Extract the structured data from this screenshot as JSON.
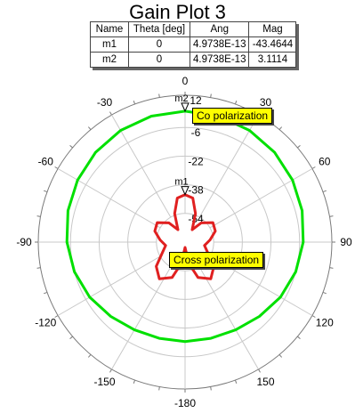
{
  "chart_data": {
    "type": "polar",
    "title": "Gain Plot 3",
    "angle_ticks": [
      "0",
      "30",
      "60",
      "90",
      "120",
      "150",
      "-180",
      "-150",
      "-120",
      "-90",
      "-60",
      "-30"
    ],
    "radial_ticks": [
      "12",
      "-6",
      "-22",
      "-38",
      "-54"
    ],
    "radial_range": [
      -70,
      12
    ],
    "series": [
      {
        "name": "Co polarization",
        "color": "#00e000",
        "points": [
          [
            0,
            3.1
          ],
          [
            15,
            2.8
          ],
          [
            30,
            2.0
          ],
          [
            45,
            0.8
          ],
          [
            60,
            -0.7
          ],
          [
            75,
            -2.3
          ],
          [
            90,
            -4.0
          ],
          [
            105,
            -6.0
          ],
          [
            120,
            -8.5
          ],
          [
            135,
            -11.3
          ],
          [
            150,
            -13.4
          ],
          [
            165,
            -14.4
          ],
          [
            180,
            -14.5
          ],
          [
            195,
            -14.4
          ],
          [
            210,
            -13.4
          ],
          [
            225,
            -11.3
          ],
          [
            240,
            -8.5
          ],
          [
            255,
            -6.0
          ],
          [
            270,
            -4.0
          ],
          [
            285,
            -2.3
          ],
          [
            300,
            -0.7
          ],
          [
            315,
            0.8
          ],
          [
            330,
            2.0
          ],
          [
            345,
            2.8
          ],
          [
            360,
            3.1
          ]
        ]
      },
      {
        "name": "Cross polarization",
        "color": "#e02020",
        "points": [
          [
            0,
            -43.5
          ],
          [
            10,
            -45
          ],
          [
            20,
            -53
          ],
          [
            30,
            -62
          ],
          [
            40,
            -56
          ],
          [
            55,
            -51
          ],
          [
            70,
            -52
          ],
          [
            85,
            -56
          ],
          [
            100,
            -59
          ],
          [
            115,
            -56
          ],
          [
            130,
            -49
          ],
          [
            145,
            -45
          ],
          [
            160,
            -49
          ],
          [
            170,
            -58
          ],
          [
            180,
            -67
          ],
          [
            190,
            -58
          ],
          [
            200,
            -49
          ],
          [
            215,
            -45
          ],
          [
            230,
            -49
          ],
          [
            245,
            -56
          ],
          [
            260,
            -59
          ],
          [
            275,
            -56
          ],
          [
            290,
            -52
          ],
          [
            305,
            -51
          ],
          [
            320,
            -56
          ],
          [
            330,
            -62
          ],
          [
            340,
            -53
          ],
          [
            350,
            -45
          ],
          [
            360,
            -43.5
          ]
        ]
      }
    ],
    "marker_table": {
      "headers": [
        "Name",
        "Theta [deg]",
        "Ang",
        "Mag"
      ],
      "rows": [
        [
          "m1",
          "0",
          "4.9738E-13",
          "-43.4644"
        ],
        [
          "m2",
          "0",
          "4.9738E-13",
          "3.1114"
        ]
      ]
    },
    "markers": [
      {
        "name": "m1",
        "theta": 0,
        "value": -43.4644
      },
      {
        "name": "m2",
        "theta": 0,
        "value": 3.1114
      }
    ],
    "grid": true
  }
}
